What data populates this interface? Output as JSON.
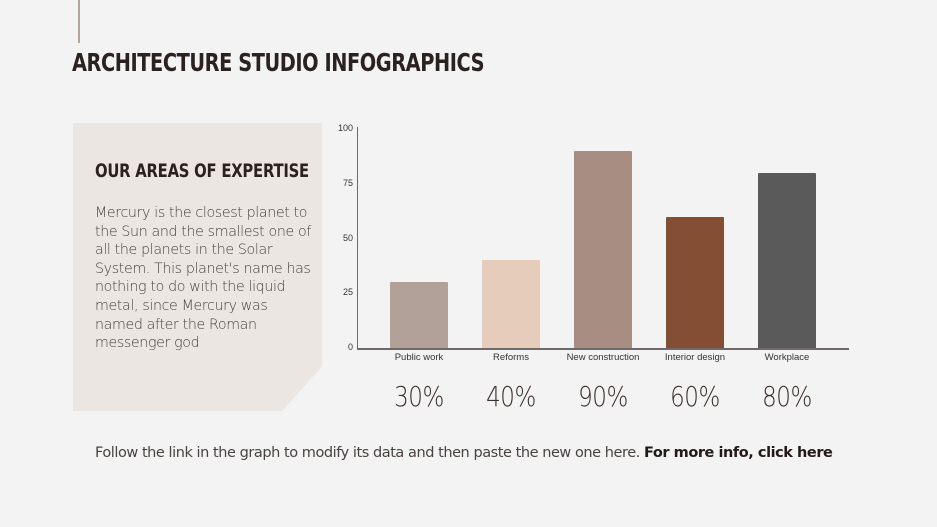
{
  "header": {
    "title": "ARCHITECTURE STUDIO INFOGRAPHICS"
  },
  "card": {
    "heading": "OUR AREAS OF EXPERTISE",
    "body": "Mercury is the closest planet to the Sun and the smallest one of all the planets in the Solar System. This planet's name has nothing to do with the liquid metal, since Mercury was named after the Roman messenger god"
  },
  "percentages": [
    "30%",
    "40%",
    "90%",
    "60%",
    "80%"
  ],
  "footer": {
    "text": "Follow the link in the graph to modify its data and then paste the new one here. ",
    "link": "For more info, click here"
  },
  "colors": {
    "background": "#f3f3f3",
    "card": "#ebe6e2",
    "accent_line": "#b5a49c",
    "title": "#2b211e"
  },
  "chart_data": {
    "type": "bar",
    "title": "",
    "xlabel": "",
    "ylabel": "",
    "ylim": [
      0,
      100
    ],
    "yticks": [
      0,
      25,
      50,
      75,
      100
    ],
    "categories": [
      "Public work",
      "Reforms",
      "New construction",
      "Interior design",
      "Workplace"
    ],
    "values": [
      30,
      40,
      90,
      60,
      80
    ],
    "bar_colors": [
      "#b1a199",
      "#e6cdbb",
      "#a88e82",
      "#834e33",
      "#5a5a5a"
    ],
    "grid": false,
    "legend": "none"
  }
}
